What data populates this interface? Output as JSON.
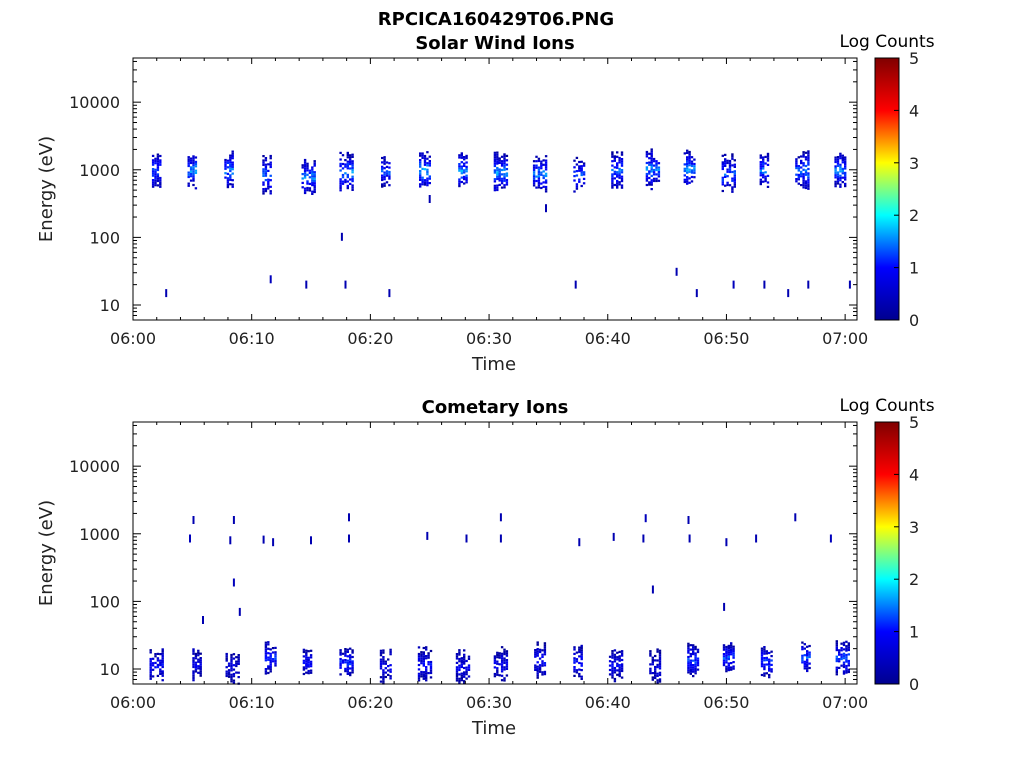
{
  "figure_title": "RPCICA160429T06.PNG",
  "chart_data": [
    {
      "type": "heatmap",
      "title": "Solar Wind Ions",
      "xlabel": "Time",
      "ylabel": "Energy (eV)",
      "colorbar_label": "Log Counts",
      "x_unit": "minutes after 06:00",
      "x_ticks": [
        "06:00",
        "06:10",
        "06:20",
        "06:30",
        "06:40",
        "06:50",
        "07:00"
      ],
      "xlim": [
        0,
        61
      ],
      "y_ticks": [
        "10",
        "100",
        "1000",
        "10000"
      ],
      "ylim": [
        6,
        45000
      ],
      "y_scale": "log",
      "clim": [
        0,
        5
      ],
      "colorbar_ticks": [
        "0",
        "1",
        "2",
        "3",
        "4",
        "5"
      ],
      "colormap": [
        "#00008f",
        "#0000ff",
        "#00ffff",
        "#ffff00",
        "#ff0000",
        "#800000"
      ],
      "clusters": [
        {
          "t": 2.0,
          "e": 1000,
          "level": 1.3
        },
        {
          "t": 5.0,
          "e": 1000,
          "level": 1.6
        },
        {
          "t": 8.1,
          "e": 1000,
          "level": 1.5
        },
        {
          "t": 11.3,
          "e": 850,
          "level": 1.4
        },
        {
          "t": 14.8,
          "e": 800,
          "level": 1.5
        },
        {
          "t": 18.0,
          "e": 950,
          "level": 1.5
        },
        {
          "t": 21.3,
          "e": 950,
          "level": 1.3
        },
        {
          "t": 24.6,
          "e": 1000,
          "level": 1.7
        },
        {
          "t": 27.8,
          "e": 1000,
          "level": 1.6
        },
        {
          "t": 31.0,
          "e": 950,
          "level": 1.6
        },
        {
          "t": 34.3,
          "e": 900,
          "level": 1.5
        },
        {
          "t": 37.6,
          "e": 850,
          "level": 1.3
        },
        {
          "t": 40.8,
          "e": 1000,
          "level": 1.4
        },
        {
          "t": 43.8,
          "e": 1050,
          "level": 1.5
        },
        {
          "t": 46.9,
          "e": 1050,
          "level": 1.6
        },
        {
          "t": 50.2,
          "e": 900,
          "level": 1.4
        },
        {
          "t": 53.2,
          "e": 1000,
          "level": 1.4
        },
        {
          "t": 56.4,
          "e": 1000,
          "level": 1.5
        },
        {
          "t": 59.6,
          "e": 1000,
          "level": 1.5
        }
      ],
      "specks": [
        {
          "t": 2.8,
          "e": 15,
          "level": 0.3
        },
        {
          "t": 11.6,
          "e": 24,
          "level": 0.4
        },
        {
          "t": 14.6,
          "e": 20,
          "level": 0.3
        },
        {
          "t": 17.6,
          "e": 102,
          "level": 0.3
        },
        {
          "t": 17.9,
          "e": 20,
          "level": 0.3
        },
        {
          "t": 21.6,
          "e": 15,
          "level": 0.3
        },
        {
          "t": 25.0,
          "e": 370,
          "level": 0.3
        },
        {
          "t": 34.8,
          "e": 270,
          "level": 0.3
        },
        {
          "t": 37.3,
          "e": 20,
          "level": 0.3
        },
        {
          "t": 45.8,
          "e": 31,
          "level": 0.3
        },
        {
          "t": 47.5,
          "e": 15,
          "level": 0.3
        },
        {
          "t": 50.6,
          "e": 20,
          "level": 0.4
        },
        {
          "t": 53.2,
          "e": 20,
          "level": 0.3
        },
        {
          "t": 55.2,
          "e": 15,
          "level": 0.3
        },
        {
          "t": 56.9,
          "e": 20,
          "level": 0.3
        },
        {
          "t": 60.4,
          "e": 20,
          "level": 0.3
        }
      ]
    },
    {
      "type": "heatmap",
      "title": "Cometary Ions",
      "xlabel": "Time",
      "ylabel": "Energy (eV)",
      "colorbar_label": "Log Counts",
      "x_unit": "minutes after 06:00",
      "x_ticks": [
        "06:00",
        "06:10",
        "06:20",
        "06:30",
        "06:40",
        "06:50",
        "07:00"
      ],
      "xlim": [
        0,
        61
      ],
      "y_ticks": [
        "10",
        "100",
        "1000",
        "10000"
      ],
      "ylim": [
        6,
        45000
      ],
      "y_scale": "log",
      "clim": [
        0,
        5
      ],
      "colorbar_ticks": [
        "0",
        "1",
        "2",
        "3",
        "4",
        "5"
      ],
      "colormap": [
        "#00008f",
        "#0000ff",
        "#00ffff",
        "#ffff00",
        "#ff0000",
        "#800000"
      ],
      "clusters": [
        {
          "t": 2.0,
          "e": 12,
          "level": 1.0
        },
        {
          "t": 5.4,
          "e": 12,
          "level": 0.8
        },
        {
          "t": 8.4,
          "e": 11,
          "level": 0.7
        },
        {
          "t": 11.6,
          "e": 15,
          "level": 1.2
        },
        {
          "t": 14.7,
          "e": 13,
          "level": 1.0
        },
        {
          "t": 18.0,
          "e": 13,
          "level": 1.2
        },
        {
          "t": 21.3,
          "e": 11,
          "level": 0.8
        },
        {
          "t": 24.6,
          "e": 12,
          "level": 0.9
        },
        {
          "t": 27.8,
          "e": 11,
          "level": 0.8
        },
        {
          "t": 31.0,
          "e": 12,
          "level": 0.8
        },
        {
          "t": 34.3,
          "e": 14,
          "level": 1.0
        },
        {
          "t": 37.5,
          "e": 13,
          "level": 1.1
        },
        {
          "t": 40.7,
          "e": 12,
          "level": 0.9
        },
        {
          "t": 44.0,
          "e": 11,
          "level": 0.7
        },
        {
          "t": 47.2,
          "e": 14,
          "level": 1.2
        },
        {
          "t": 50.2,
          "e": 15,
          "level": 1.3
        },
        {
          "t": 53.4,
          "e": 13,
          "level": 1.2
        },
        {
          "t": 56.7,
          "e": 15,
          "level": 1.3
        },
        {
          "t": 59.8,
          "e": 15,
          "level": 1.3
        }
      ],
      "specks": [
        {
          "t": 4.8,
          "e": 850,
          "level": 0.4
        },
        {
          "t": 5.1,
          "e": 1600,
          "level": 0.3
        },
        {
          "t": 5.9,
          "e": 53,
          "level": 0.3
        },
        {
          "t": 8.2,
          "e": 800,
          "level": 0.3
        },
        {
          "t": 8.5,
          "e": 1600,
          "level": 0.3
        },
        {
          "t": 8.5,
          "e": 190,
          "level": 0.4
        },
        {
          "t": 9.0,
          "e": 70,
          "level": 0.3
        },
        {
          "t": 11.0,
          "e": 820,
          "level": 0.3
        },
        {
          "t": 11.8,
          "e": 750,
          "level": 0.3
        },
        {
          "t": 15.0,
          "e": 800,
          "level": 0.3
        },
        {
          "t": 18.2,
          "e": 1750,
          "level": 0.3
        },
        {
          "t": 18.2,
          "e": 850,
          "level": 0.3
        },
        {
          "t": 24.8,
          "e": 930,
          "level": 0.3
        },
        {
          "t": 28.1,
          "e": 850,
          "level": 0.3
        },
        {
          "t": 31.0,
          "e": 1750,
          "level": 0.3
        },
        {
          "t": 31.0,
          "e": 850,
          "level": 0.3
        },
        {
          "t": 37.6,
          "e": 750,
          "level": 0.3
        },
        {
          "t": 40.5,
          "e": 900,
          "level": 0.3
        },
        {
          "t": 43.2,
          "e": 1700,
          "level": 0.4
        },
        {
          "t": 43.0,
          "e": 850,
          "level": 0.3
        },
        {
          "t": 43.8,
          "e": 150,
          "level": 0.3
        },
        {
          "t": 46.8,
          "e": 1600,
          "level": 0.3
        },
        {
          "t": 46.9,
          "e": 850,
          "level": 0.3
        },
        {
          "t": 49.8,
          "e": 83,
          "level": 0.3
        },
        {
          "t": 50.0,
          "e": 750,
          "level": 0.3
        },
        {
          "t": 52.5,
          "e": 850,
          "level": 0.3
        },
        {
          "t": 55.8,
          "e": 1750,
          "level": 0.3
        },
        {
          "t": 58.8,
          "e": 850,
          "level": 0.4
        }
      ]
    }
  ]
}
